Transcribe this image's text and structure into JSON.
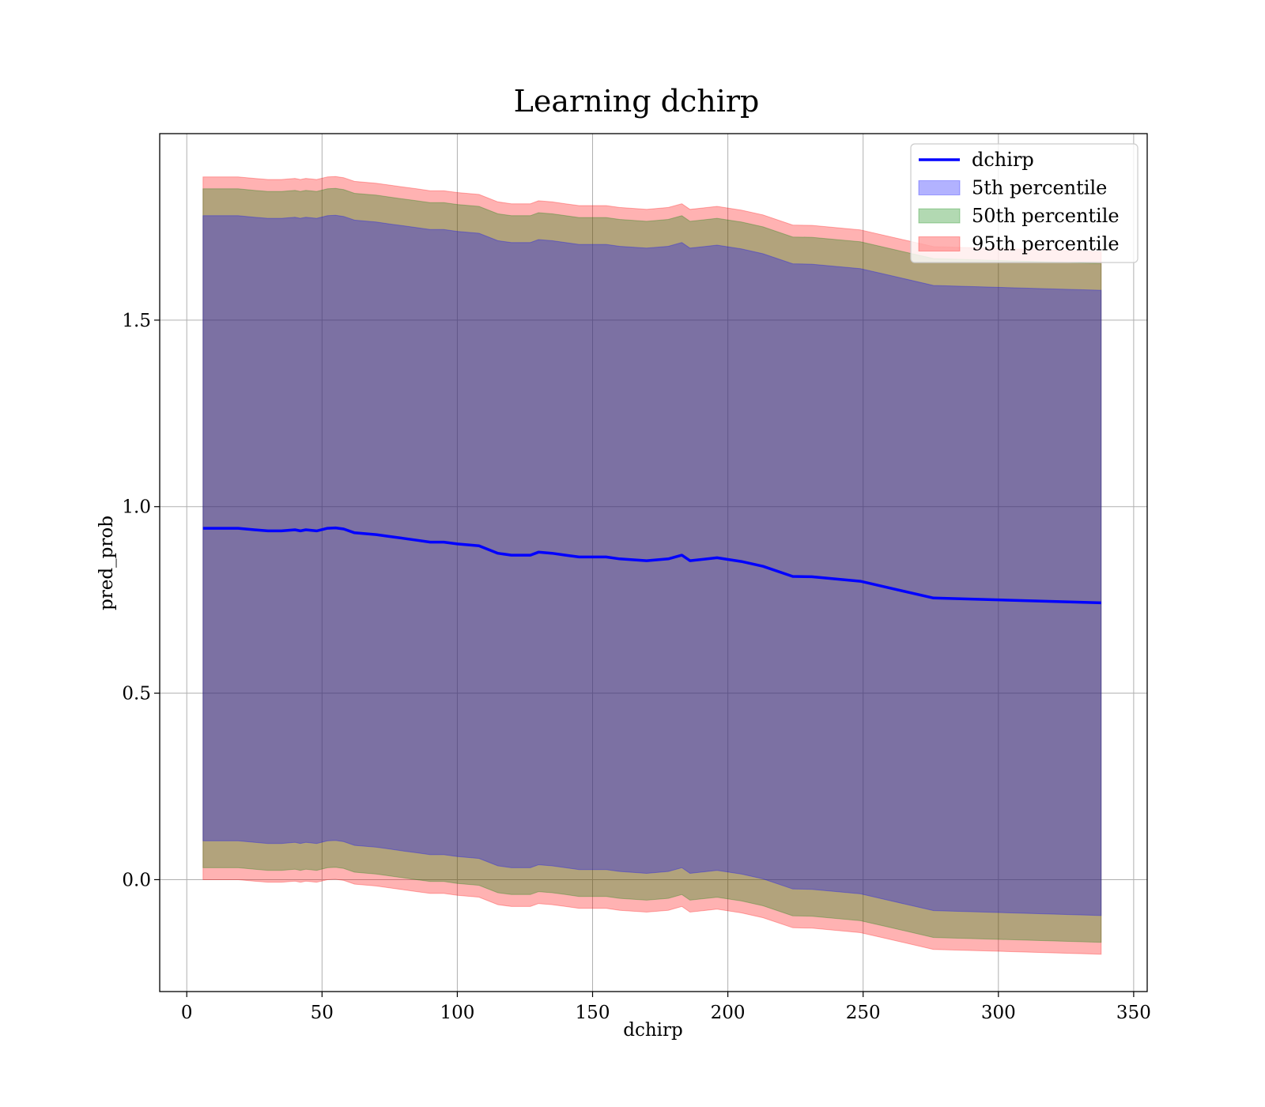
{
  "chart_data": {
    "type": "area",
    "title": "Learning dchirp",
    "xlabel": "dchirp",
    "ylabel": "pred_prob",
    "xlim": [
      -10,
      355
    ],
    "ylim": [
      -0.3,
      2.0
    ],
    "xticks": [
      0,
      50,
      100,
      150,
      200,
      250,
      300,
      350
    ],
    "xtick_labels": [
      "0",
      "50",
      "100",
      "150",
      "200",
      "250",
      "300",
      "350"
    ],
    "yticks": [
      0.0,
      0.5,
      1.0,
      1.5
    ],
    "ytick_labels": [
      "0.0",
      "0.5",
      "1.0",
      "1.5"
    ],
    "grid": true,
    "legend_position": "top-right",
    "x": [
      6,
      19,
      25,
      30,
      35,
      40,
      42,
      44,
      48,
      52,
      55,
      58,
      62,
      70,
      75,
      80,
      85,
      90,
      95,
      100,
      108,
      115,
      120,
      127,
      130,
      135,
      140,
      145,
      155,
      160,
      170,
      178,
      183,
      186,
      196,
      205,
      213,
      224,
      231,
      249,
      258,
      276,
      338
    ],
    "series": [
      {
        "name": "dchirp",
        "kind": "line",
        "color": "#0000ff",
        "values": [
          0.942,
          0.942,
          0.938,
          0.935,
          0.935,
          0.938,
          0.935,
          0.938,
          0.935,
          0.942,
          0.943,
          0.94,
          0.93,
          0.925,
          0.92,
          0.915,
          0.91,
          0.905,
          0.905,
          0.9,
          0.895,
          0.875,
          0.87,
          0.87,
          0.878,
          0.875,
          0.87,
          0.865,
          0.865,
          0.86,
          0.855,
          0.86,
          0.87,
          0.855,
          0.863,
          0.853,
          0.84,
          0.813,
          0.812,
          0.8,
          0.785,
          0.755,
          0.742
        ]
      },
      {
        "name": "5th percentile",
        "kind": "band",
        "color": "#0000ff",
        "opacity": 0.3,
        "lower_offset": -0.838,
        "upper_offset": 0.838
      },
      {
        "name": "50th percentile",
        "kind": "band",
        "color": "#008000",
        "opacity": 0.3,
        "lower_offset": -0.91,
        "upper_offset": 0.91
      },
      {
        "name": "95th percentile",
        "kind": "band",
        "color": "#ff0000",
        "opacity": 0.3,
        "lower_offset": -0.942,
        "upper_offset": 0.942
      }
    ]
  }
}
